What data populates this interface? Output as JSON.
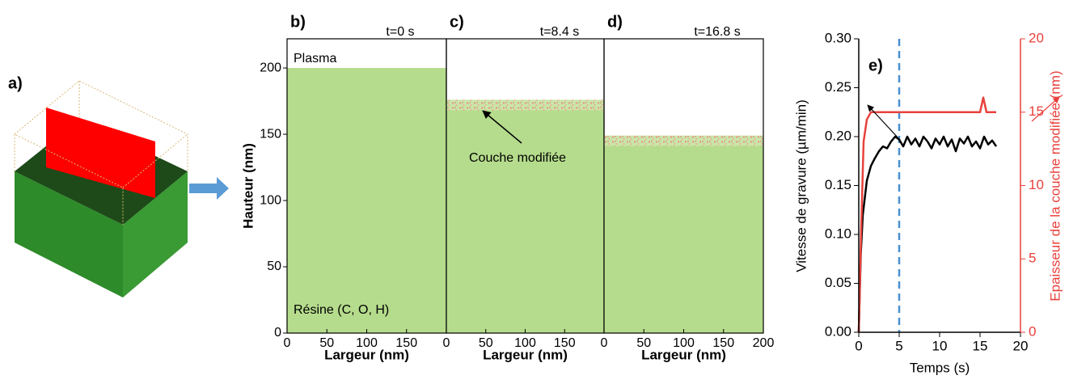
{
  "chart_data": [
    {
      "type": "diagram",
      "panel_label": "a)"
    },
    {
      "type": "profile",
      "panel_label": "b)",
      "title": "t=0 s",
      "surface": 200,
      "color": "#b5dc8c",
      "xlabel": "Largeur (nm)",
      "ylabel": "Hauteur (nm)",
      "xlim": [
        0,
        200
      ],
      "xticks": [
        0,
        50,
        100,
        150
      ],
      "ylim": [
        0,
        222
      ],
      "yticks": [
        0,
        50,
        100,
        150,
        200
      ],
      "annotations": [
        "Plasma",
        "Résine (C, O, H)"
      ]
    },
    {
      "type": "profile",
      "panel_label": "c)",
      "title": "t=8.4 s",
      "surface": 172,
      "layer_thickness": 8,
      "color": "#b5dc8c",
      "xlabel": "Largeur (nm)",
      "xlim": [
        0,
        200
      ],
      "xticks": [
        0,
        50,
        100,
        150
      ],
      "ylim": [
        0,
        222
      ],
      "annotations": [
        "Couche modifiée"
      ]
    },
    {
      "type": "profile",
      "panel_label": "d)",
      "title": "t=16.8 s",
      "surface": 145,
      "layer_thickness": 8,
      "color": "#b5dc8c",
      "xlabel": "Largeur (nm)",
      "xlim": [
        0,
        200
      ],
      "xticks": [
        0,
        50,
        100,
        150,
        200
      ],
      "ylim": [
        0,
        222
      ]
    },
    {
      "type": "line",
      "panel_label": "e)",
      "xlabel": "Temps (s)",
      "ylabel": "Vitesse de gravure (µm/min)",
      "y2label": "Epaisseur de la couche modifiée (nm)",
      "xlim": [
        0,
        20
      ],
      "xticks": [
        0,
        5,
        10,
        15,
        20
      ],
      "ylim": [
        0,
        0.3
      ],
      "yticks": [
        {
          "value": 0,
          "label": "0.00"
        },
        {
          "value": 0.05,
          "label": "0.05"
        },
        {
          "value": 0.1,
          "label": "0.10"
        },
        {
          "value": 0.15,
          "label": "0.15"
        },
        {
          "value": 0.2,
          "label": "0.20"
        },
        {
          "value": 0.25,
          "label": "0.25"
        },
        {
          "value": 0.3,
          "label": "0.30"
        }
      ],
      "y2lim": [
        0,
        20
      ],
      "y2ticks": [
        0,
        5,
        10,
        15,
        20
      ],
      "y2color": "#e8413c",
      "vline": 5,
      "vline_color": "#4a90d0",
      "series": [
        {
          "name": null,
          "color": "#000000",
          "x": [
            0,
            0.25,
            0.5,
            1,
            1.5,
            2,
            2.5,
            3,
            3.5,
            4,
            4.5,
            5,
            5.5,
            6,
            6.5,
            7,
            7.5,
            8,
            8.5,
            9,
            9.5,
            10,
            10.5,
            11,
            11.5,
            12,
            12.5,
            13,
            13.5,
            14,
            14.5,
            15,
            15.5,
            16,
            16.5,
            17
          ],
          "values": [
            0,
            0.08,
            0.12,
            0.155,
            0.17,
            0.178,
            0.185,
            0.19,
            0.188,
            0.195,
            0.2,
            0.197,
            0.19,
            0.2,
            0.192,
            0.198,
            0.19,
            0.2,
            0.195,
            0.188,
            0.198,
            0.192,
            0.2,
            0.19,
            0.197,
            0.185,
            0.198,
            0.193,
            0.2,
            0.19,
            0.195,
            0.188,
            0.2,
            0.192,
            0.196,
            0.19
          ]
        },
        {
          "name": null,
          "color": "#e8413c",
          "axis": "y2",
          "x": [
            0,
            0.3,
            0.6,
            1,
            1.5,
            15,
            15.4,
            15.8,
            17
          ],
          "values": [
            0,
            7,
            13,
            14.5,
            15,
            15,
            16,
            15,
            15
          ]
        }
      ]
    }
  ]
}
